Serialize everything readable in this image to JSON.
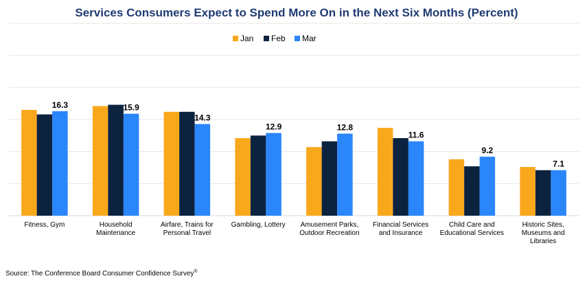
{
  "chart_data": {
    "type": "bar",
    "title": "Services Consumers Expect to Spend More On in the Next Six Months (Percent)",
    "xlabel": "",
    "ylabel": "",
    "ylim": [
      0,
      30
    ],
    "grid": true,
    "legend_position": "top-center",
    "categories": [
      [
        "Fitness, Gym"
      ],
      [
        "Household",
        "Maintenance"
      ],
      [
        "Airfare, Trains for",
        "Personal Travel"
      ],
      [
        "Gambling, Lottery"
      ],
      [
        "Amusement Parks,",
        "Outdoor Recreation"
      ],
      [
        "Financial Services",
        "and Insurance"
      ],
      [
        "Child Care and",
        "Educational Services"
      ],
      [
        "Historic Sites,",
        "Museums and",
        "Libraries"
      ]
    ],
    "series": [
      {
        "name": "Jan",
        "color": "#f9a81c",
        "values": [
          16.5,
          17.1,
          16.2,
          12.1,
          10.7,
          13.7,
          8.8,
          7.6
        ]
      },
      {
        "name": "Feb",
        "color": "#0c2340",
        "values": [
          15.8,
          17.3,
          16.2,
          12.5,
          11.6,
          12.1,
          7.7,
          7.1
        ]
      },
      {
        "name": "Mar",
        "color": "#2b86fb",
        "values": [
          16.3,
          15.9,
          14.3,
          12.9,
          12.8,
          11.6,
          9.2,
          7.1
        ]
      }
    ],
    "data_labels": [
      "16.3",
      "15.9",
      "14.3",
      "12.9",
      "12.8",
      "11.6",
      "9.2",
      "7.1"
    ],
    "data_label_series": "Mar"
  },
  "source": {
    "text": "Source: The Conference Board Consumer Confidence Survey",
    "mark": "®"
  }
}
